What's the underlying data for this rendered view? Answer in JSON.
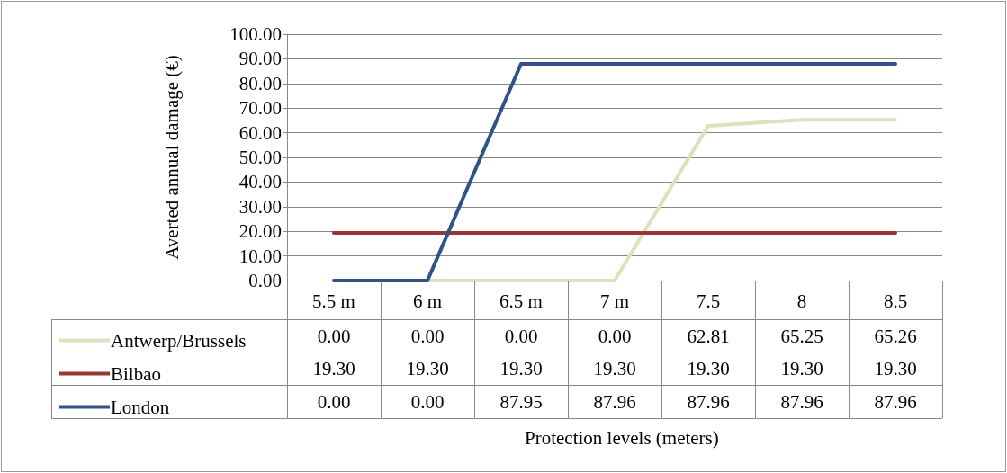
{
  "chart_data": {
    "type": "line",
    "annotations": [
      "Protection levels (meters)"
    ],
    "ylabel": "Averted annual damage (€)",
    "categories": [
      "5.5 m",
      "6 m",
      "6.5 m",
      "7 m",
      "7.5",
      "8",
      "8.5"
    ],
    "series": [
      {
        "name": "Antwerp/Brussels",
        "color": "#d7e4bd",
        "values": [
          0,
          0,
          0,
          0,
          62.81,
          65.25,
          65.26
        ],
        "value_labels": [
          "0.00",
          "0.00",
          "0.00",
          "0.00",
          "62.81",
          "65.25",
          "65.26"
        ]
      },
      {
        "name": "Bilbao",
        "color": "#953735",
        "values": [
          19.3,
          19.3,
          19.3,
          19.3,
          19.3,
          19.3,
          19.3
        ],
        "value_labels": [
          "19.30",
          "19.30",
          "19.30",
          "19.30",
          "19.30",
          "19.30",
          "19.30"
        ]
      },
      {
        "name": "London",
        "color": "#2f5289",
        "values": [
          0,
          0,
          87.95,
          87.96,
          87.96,
          87.96,
          87.96
        ],
        "value_labels": [
          "0.00",
          "0.00",
          "87.95",
          "87.96",
          "87.96",
          "87.96",
          "87.96"
        ]
      }
    ],
    "ylim": [
      0,
      100
    ],
    "yticks": [
      {
        "value": 0,
        "label": "0.00"
      },
      {
        "value": 10,
        "label": "10.00"
      },
      {
        "value": 20,
        "label": "20.00"
      },
      {
        "value": 30,
        "label": "30.00"
      },
      {
        "value": 40,
        "label": "40.00"
      },
      {
        "value": 50,
        "label": "50.00"
      },
      {
        "value": 60,
        "label": "60.00"
      },
      {
        "value": 70,
        "label": "70.00"
      },
      {
        "value": 80,
        "label": "80.00"
      },
      {
        "value": 90,
        "label": "90.00"
      },
      {
        "value": 100,
        "label": "100.00"
      }
    ],
    "grid": "y",
    "legend": "bottom left",
    "marker": "none",
    "line_style": "solid"
  }
}
